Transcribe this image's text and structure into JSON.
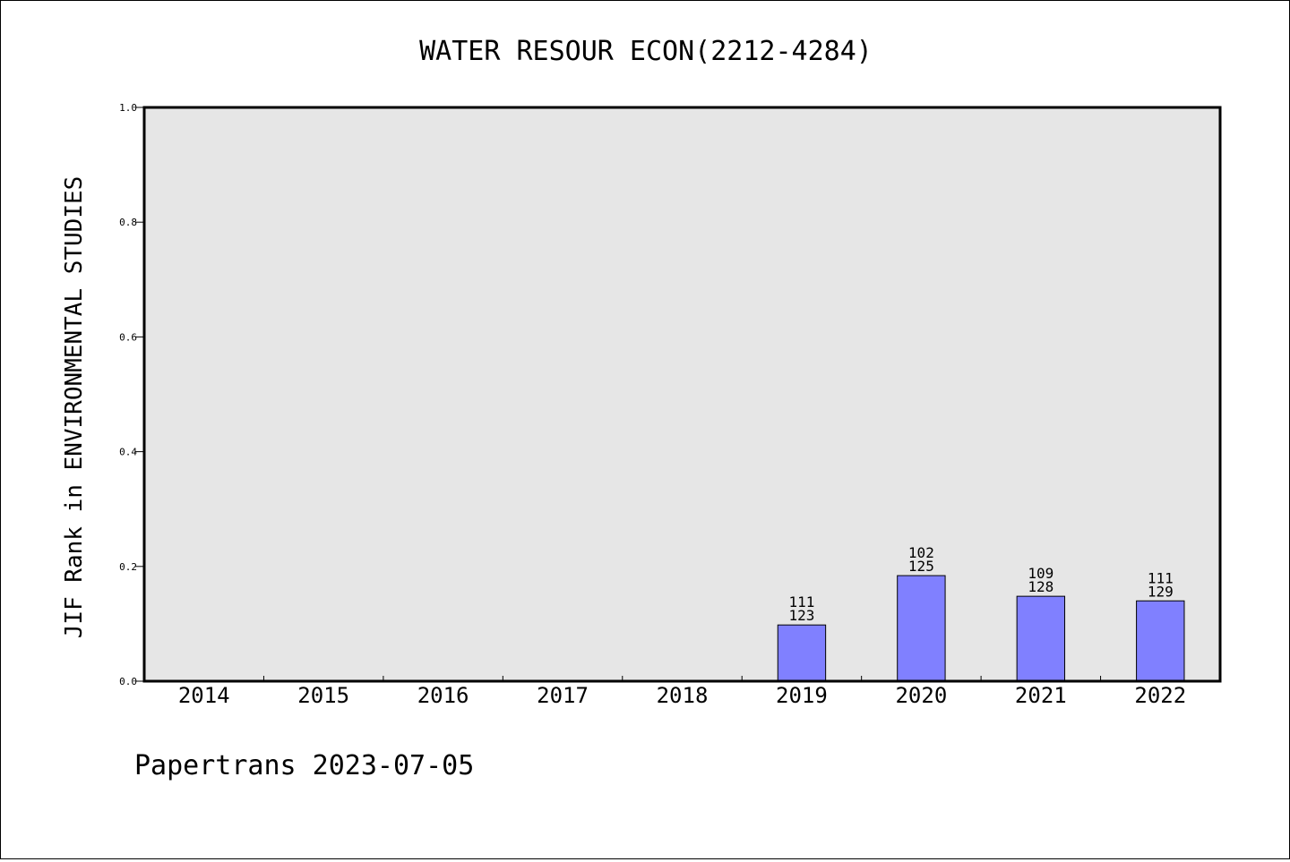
{
  "chart_data": {
    "type": "bar",
    "title": "WATER RESOUR ECON(2212-4284)",
    "ylabel": "JIF Rank in ENVIRONMENTAL STUDIES",
    "xlabel": "",
    "categories": [
      "2014",
      "2015",
      "2016",
      "2017",
      "2018",
      "2019",
      "2020",
      "2021",
      "2022"
    ],
    "values": [
      null,
      null,
      null,
      null,
      null,
      0.098,
      0.184,
      0.148,
      0.14
    ],
    "rank_labels": [
      "",
      "",
      "",
      "",
      "",
      "111",
      "102",
      "109",
      "111"
    ],
    "total_labels": [
      "",
      "",
      "",
      "",
      "",
      "123",
      "125",
      "128",
      "129"
    ],
    "ylim": [
      0,
      1.0
    ],
    "yticks": [
      "0.0",
      "0.2",
      "0.4",
      "0.6",
      "0.8",
      "1.0"
    ],
    "grid": false,
    "colors": {
      "bar": "#8080ff",
      "plot_background": "#e6e6e6",
      "axis": "#000000"
    }
  },
  "footer": {
    "text": "Papertrans 2023-07-05"
  }
}
